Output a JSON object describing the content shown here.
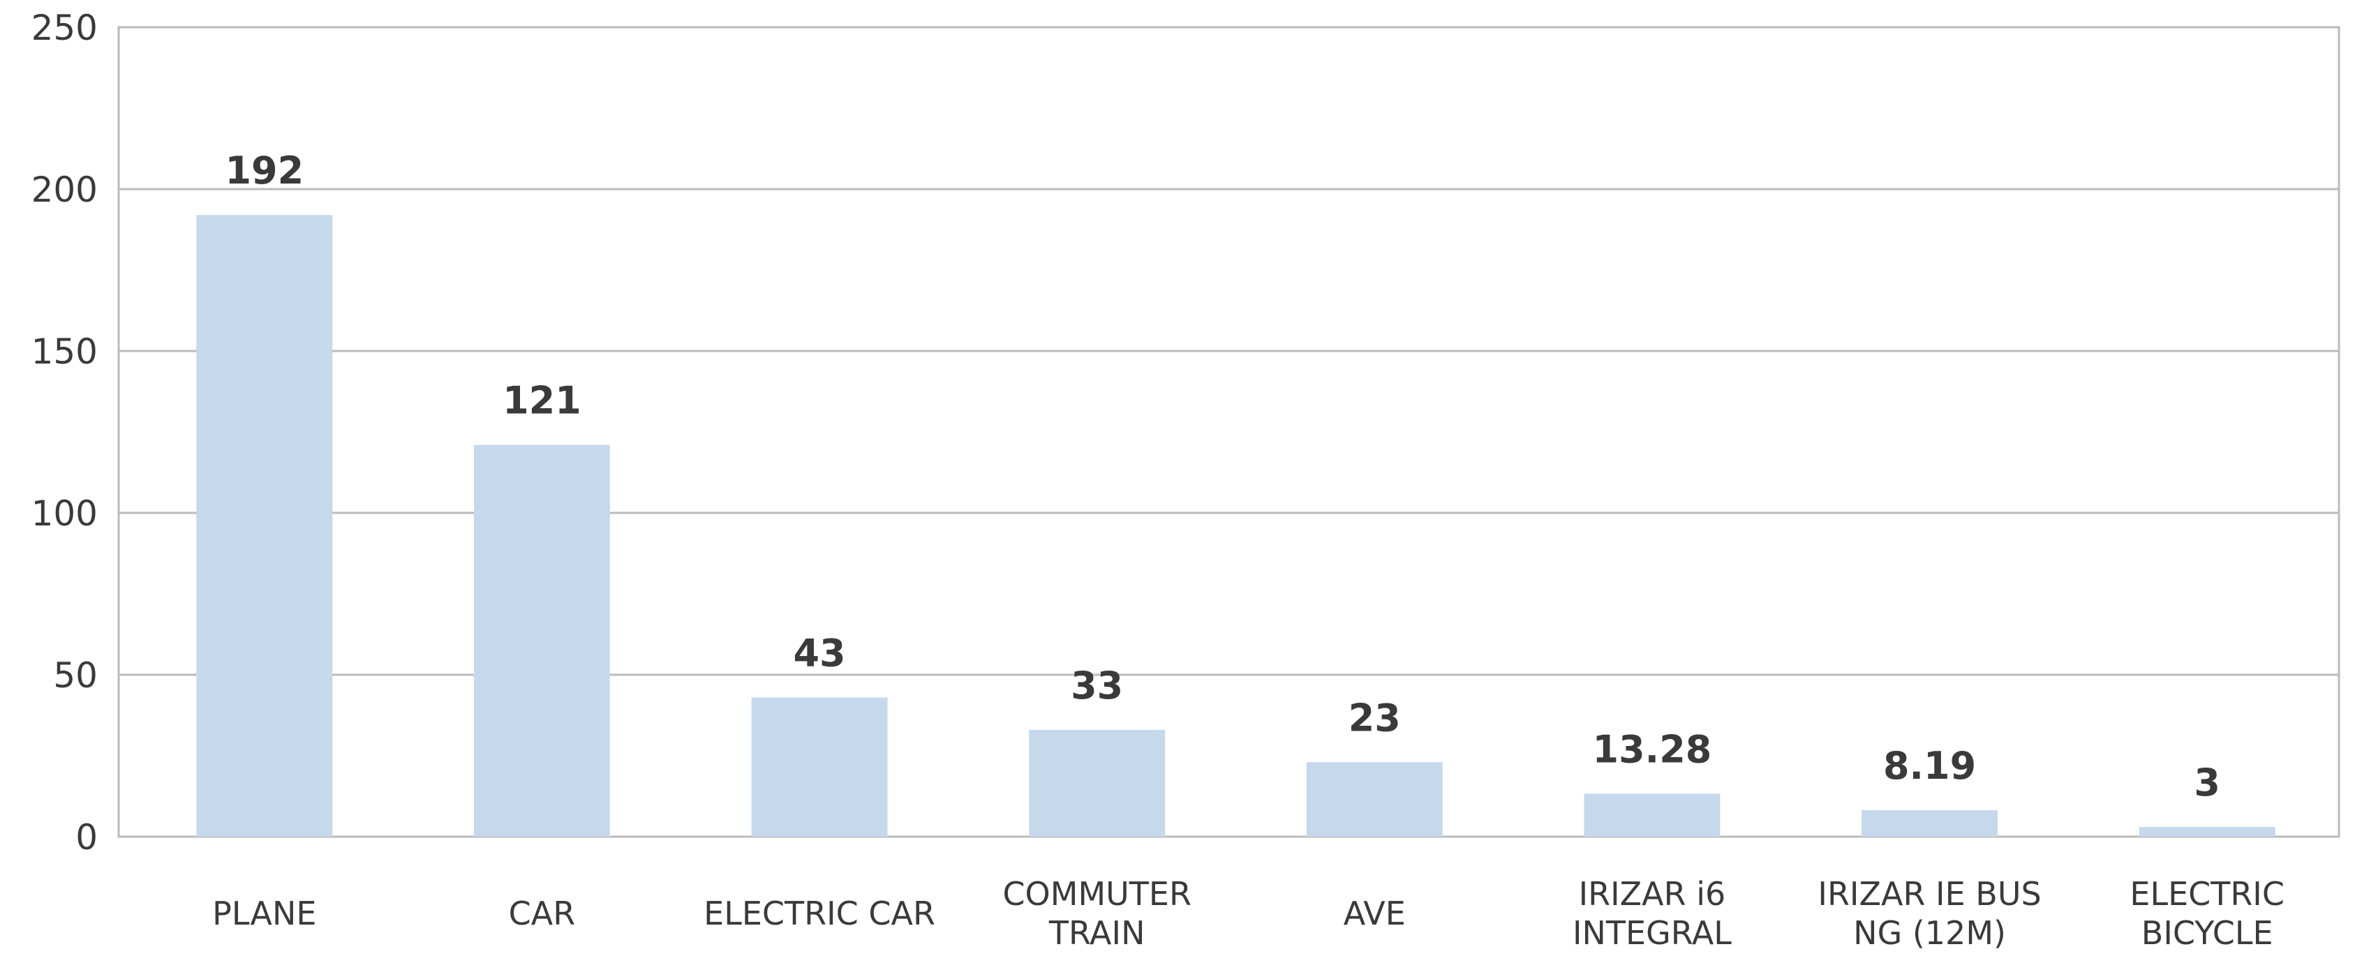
{
  "chart_data": {
    "type": "bar",
    "categories": [
      "PLANE",
      "CAR",
      "ELECTRIC CAR",
      "COMMUTER\nTRAIN",
      "AVE",
      "IRIZAR i6\nINTEGRAL",
      "IRIZAR IE BUS\nNG (12M)",
      "ELECTRIC\nBICYCLE"
    ],
    "values": [
      192,
      121,
      43,
      33,
      23,
      13.28,
      8.19,
      3
    ],
    "color": "#c5d8ec",
    "ylim": [
      0,
      250
    ],
    "yticks": [
      0,
      50,
      100,
      150,
      200,
      250
    ],
    "grid": true
  }
}
